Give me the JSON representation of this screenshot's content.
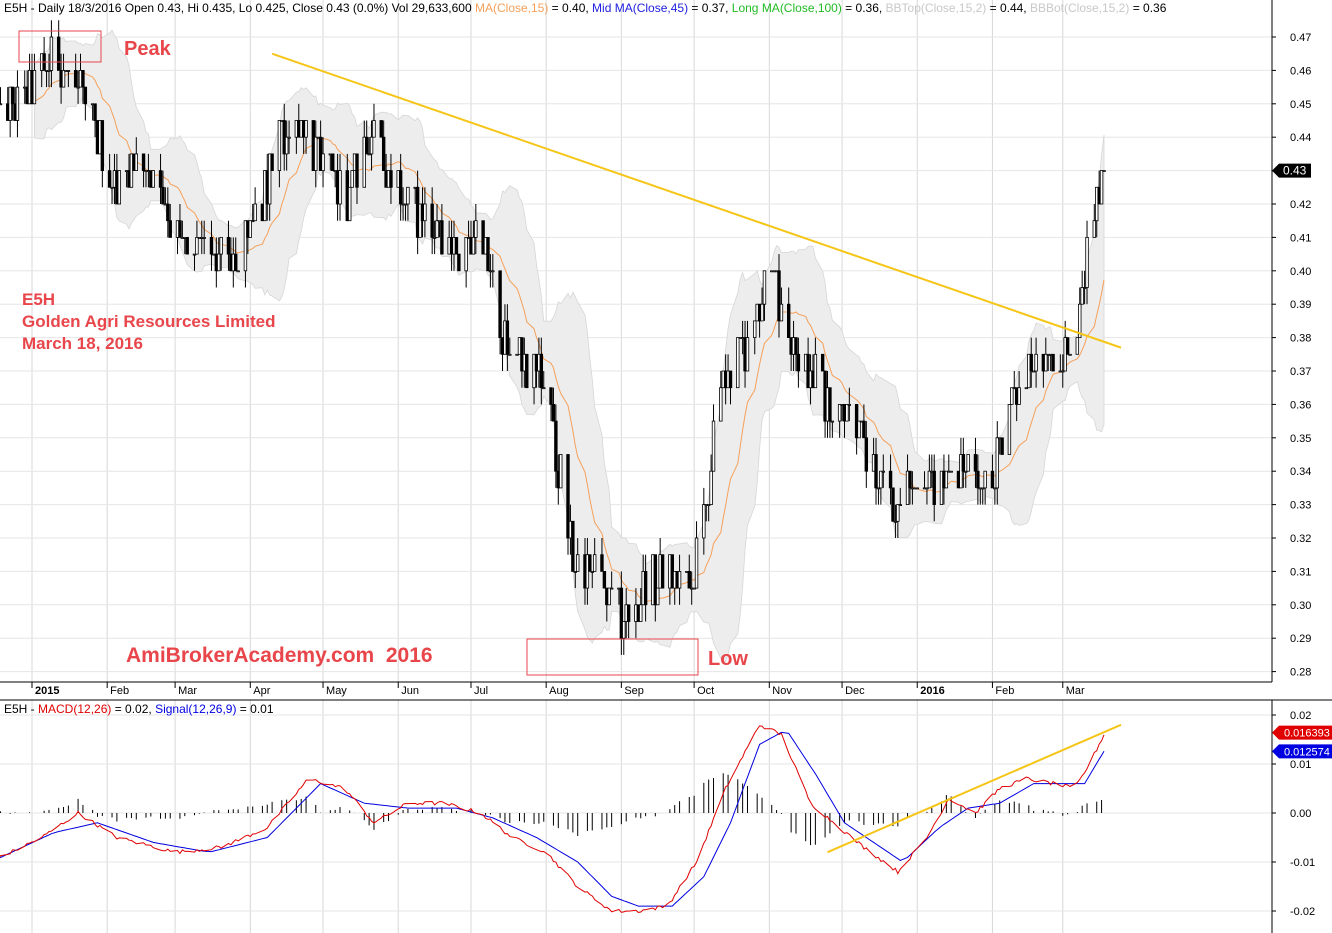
{
  "header": {
    "price": {
      "ticker": "E5H",
      "info": " - Daily 18/3/2016 Open 0.43, Hi 0.435, Lo 0.425, Close 0.43 (0.0%) Vol 29,633,600 ",
      "ma_label": "MA(Close,15)",
      "ma_value": " = 0.40, ",
      "midma_prefix": "Mid ",
      "midma_label": "MA(Close,45)",
      "midma_value": " = 0.37, ",
      "longma_prefix": "Long ",
      "longma_label": "MA(Close,100)",
      "longma_value": " = 0.36, ",
      "bbtop_label": "BBTop(Close,15,2)",
      "bbtop_value": " = 0.44, ",
      "bbbot_label": "BBBot(Close,15,2)",
      "bbbot_value": " = 0.36"
    },
    "macd": {
      "ticker": "E5H",
      "sep": " - ",
      "macd_label": "MACD(12,26)",
      "macd_value": " = 0.02, ",
      "signal_label": "Signal(12,26,9)",
      "signal_value": " = 0.01"
    }
  },
  "annotations": {
    "peak": "Peak",
    "low": "Low",
    "stock_code": "E5H",
    "company": "Golden Agri Resources Limited",
    "date": "March 18, 2016",
    "watermark": "AmiBrokerAcademy.com  2016"
  },
  "markers": {
    "last_price": "0.43",
    "macd_last": "0.016393",
    "signal_last": "0.012574"
  },
  "colors": {
    "ma15": "#f5a05a",
    "midma": "#2020e0",
    "longma": "#22bb22",
    "bb_band": "#ededed",
    "trendline": "#f5c518",
    "macd": "#e00000",
    "signal": "#0000e0",
    "annotation": "#e8464b",
    "candle": "#000000"
  },
  "chart_data": [
    {
      "type": "candlestick",
      "title": "E5H - Daily",
      "y_axis_side": "right",
      "ylim": [
        0.275,
        0.475
      ],
      "y_ticks": [
        "0.47",
        "0.46",
        "0.45",
        "0.44",
        "0.43",
        "0.42",
        "0.41",
        "0.40",
        "0.39",
        "0.38",
        "0.37",
        "0.36",
        "0.35",
        "0.34",
        "0.33",
        "0.32",
        "0.31",
        "0.30",
        "0.29",
        "0.28"
      ],
      "x_labels": [
        "2015",
        "Feb",
        "Mar",
        "Apr",
        "May",
        "Jun",
        "Jul",
        "Aug",
        "Sep",
        "Oct",
        "Nov",
        "Dec",
        "2016",
        "Feb",
        "Mar"
      ],
      "x_range": [
        "2015-01-01",
        "2016-03-18"
      ],
      "close_path": [
        [
          "2014-12-15",
          0.445
        ],
        [
          "2015-01-02",
          0.455
        ],
        [
          "2015-01-10",
          0.465
        ],
        [
          "2015-01-20",
          0.455
        ],
        [
          "2015-01-28",
          0.44
        ],
        [
          "2015-02-05",
          0.425
        ],
        [
          "2015-02-15",
          0.435
        ],
        [
          "2015-02-25",
          0.42
        ],
        [
          "2015-03-06",
          0.41
        ],
        [
          "2015-03-16",
          0.405
        ],
        [
          "2015-03-26",
          0.4
        ],
        [
          "2015-04-06",
          0.42
        ],
        [
          "2015-04-13",
          0.44
        ],
        [
          "2015-04-22",
          0.445
        ],
        [
          "2015-05-01",
          0.43
        ],
        [
          "2015-05-11",
          0.42
        ],
        [
          "2015-05-20",
          0.44
        ],
        [
          "2015-05-29",
          0.43
        ],
        [
          "2015-06-08",
          0.42
        ],
        [
          "2015-06-17",
          0.41
        ],
        [
          "2015-06-26",
          0.405
        ],
        [
          "2015-07-03",
          0.41
        ],
        [
          "2015-07-08",
          0.405
        ],
        [
          "2015-07-14",
          0.38
        ],
        [
          "2015-07-22",
          0.375
        ],
        [
          "2015-08-01",
          0.365
        ],
        [
          "2015-08-06",
          0.34
        ],
        [
          "2015-08-12",
          0.315
        ],
        [
          "2015-08-20",
          0.31
        ],
        [
          "2015-08-28",
          0.3
        ],
        [
          "2015-09-04",
          0.295
        ],
        [
          "2015-09-11",
          0.305
        ],
        [
          "2015-09-21",
          0.31
        ],
        [
          "2015-09-30",
          0.305
        ],
        [
          "2015-10-05",
          0.325
        ],
        [
          "2015-10-10",
          0.355
        ],
        [
          "2015-10-14",
          0.37
        ],
        [
          "2015-10-22",
          0.375
        ],
        [
          "2015-10-30",
          0.395
        ],
        [
          "2015-11-04",
          0.395
        ],
        [
          "2015-11-10",
          0.38
        ],
        [
          "2015-11-18",
          0.37
        ],
        [
          "2015-11-26",
          0.36
        ],
        [
          "2015-12-06",
          0.355
        ],
        [
          "2015-12-16",
          0.34
        ],
        [
          "2015-12-23",
          0.33
        ],
        [
          "2016-01-01",
          0.34
        ],
        [
          "2016-01-10",
          0.335
        ],
        [
          "2016-01-20",
          0.345
        ],
        [
          "2016-01-30",
          0.335
        ],
        [
          "2016-02-08",
          0.355
        ],
        [
          "2016-02-15",
          0.37
        ],
        [
          "2016-02-25",
          0.37
        ],
        [
          "2016-03-04",
          0.375
        ],
        [
          "2016-03-09",
          0.395
        ],
        [
          "2016-03-14",
          0.415
        ],
        [
          "2016-03-18",
          0.43
        ]
      ],
      "last_close": 0.43,
      "bollinger_bands": "BBTop(Close,15,2) / BBBot(Close,15,2)",
      "moving_average": "MA(Close,15)",
      "trendline": [
        [
          "2015-04-10",
          0.465
        ],
        [
          "2016-03-25",
          0.377
        ]
      ],
      "annotations": [
        "Peak",
        "Low"
      ]
    },
    {
      "type": "line",
      "title": "MACD(12,26)",
      "y_axis_side": "right",
      "ylim": [
        -0.0215,
        0.022
      ],
      "y_ticks": [
        "0.02",
        "0.01",
        "0.00",
        "-0.01",
        "-0.02"
      ],
      "series": [
        {
          "name": "MACD(12,26)",
          "last": 0.02,
          "points": [
            [
              "2014-12-15",
              -0.01
            ],
            [
              "2015-01-05",
              -0.005
            ],
            [
              "2015-01-20",
              0.0
            ],
            [
              "2015-02-05",
              -0.005
            ],
            [
              "2015-03-01",
              -0.008
            ],
            [
              "2015-03-20",
              -0.007
            ],
            [
              "2015-04-08",
              -0.003
            ],
            [
              "2015-04-25",
              0.007
            ],
            [
              "2015-05-10",
              0.005
            ],
            [
              "2015-05-22",
              -0.002
            ],
            [
              "2015-06-05",
              0.002
            ],
            [
              "2015-06-20",
              0.002
            ],
            [
              "2015-07-05",
              0.0
            ],
            [
              "2015-07-18",
              -0.005
            ],
            [
              "2015-08-01",
              -0.008
            ],
            [
              "2015-08-14",
              -0.015
            ],
            [
              "2015-08-28",
              -0.02
            ],
            [
              "2015-09-08",
              -0.02
            ],
            [
              "2015-09-20",
              -0.019
            ],
            [
              "2015-10-02",
              -0.01
            ],
            [
              "2015-10-14",
              0.005
            ],
            [
              "2015-10-28",
              0.018
            ],
            [
              "2015-11-06",
              0.016
            ],
            [
              "2015-11-18",
              0.002
            ],
            [
              "2015-11-30",
              -0.003
            ],
            [
              "2015-12-10",
              -0.007
            ],
            [
              "2015-12-24",
              -0.012
            ],
            [
              "2016-01-05",
              -0.005
            ],
            [
              "2016-01-14",
              0.003
            ],
            [
              "2016-01-25",
              0.0
            ],
            [
              "2016-02-04",
              0.005
            ],
            [
              "2016-02-15",
              0.007
            ],
            [
              "2016-02-26",
              0.006
            ],
            [
              "2016-03-06",
              0.005
            ],
            [
              "2016-03-12",
              0.01
            ],
            [
              "2016-03-18",
              0.016
            ]
          ]
        },
        {
          "name": "Signal(12,26,9)",
          "last": 0.01,
          "points": [
            [
              "2014-12-15",
              -0.01
            ],
            [
              "2015-01-10",
              -0.004
            ],
            [
              "2015-01-28",
              -0.002
            ],
            [
              "2015-02-20",
              -0.006
            ],
            [
              "2015-03-15",
              -0.008
            ],
            [
              "2015-04-08",
              -0.005
            ],
            [
              "2015-04-30",
              0.006
            ],
            [
              "2015-05-18",
              0.002
            ],
            [
              "2015-06-05",
              0.001
            ],
            [
              "2015-06-25",
              0.001
            ],
            [
              "2015-07-10",
              -0.001
            ],
            [
              "2015-07-28",
              -0.005
            ],
            [
              "2015-08-14",
              -0.01
            ],
            [
              "2015-08-28",
              -0.017
            ],
            [
              "2015-09-08",
              -0.019
            ],
            [
              "2015-09-22",
              -0.019
            ],
            [
              "2015-10-05",
              -0.013
            ],
            [
              "2015-10-16",
              -0.002
            ],
            [
              "2015-10-28",
              0.014
            ],
            [
              "2015-11-08",
              0.017
            ],
            [
              "2015-11-20",
              0.008
            ],
            [
              "2015-12-02",
              -0.002
            ],
            [
              "2015-12-14",
              -0.006
            ],
            [
              "2015-12-26",
              -0.01
            ],
            [
              "2016-01-10",
              -0.003
            ],
            [
              "2016-01-22",
              0.001
            ],
            [
              "2016-02-04",
              0.002
            ],
            [
              "2016-02-18",
              0.006
            ],
            [
              "2016-03-02",
              0.006
            ],
            [
              "2016-03-10",
              0.006
            ],
            [
              "2016-03-18",
              0.0126
            ]
          ]
        }
      ],
      "histogram": "MACD - Signal",
      "trendline": [
        [
          "2015-11-25",
          -0.008
        ],
        [
          "2016-03-25",
          0.018
        ]
      ]
    }
  ]
}
